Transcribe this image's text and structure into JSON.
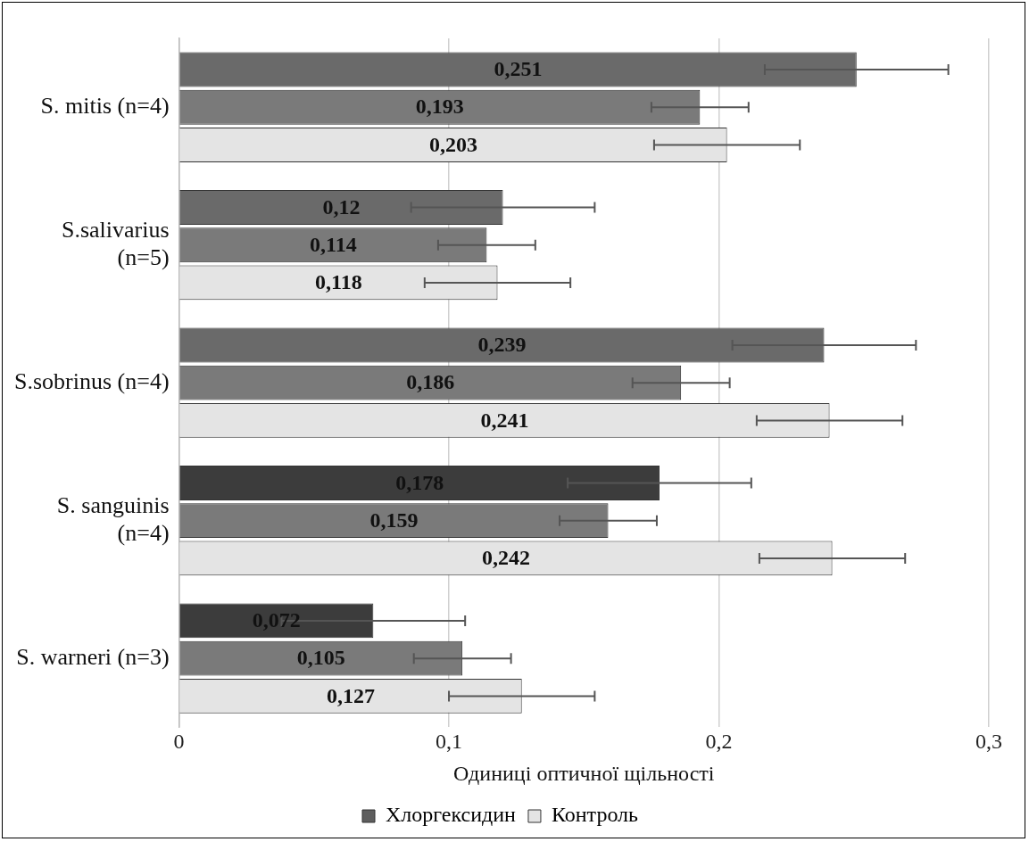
{
  "chart_data": {
    "type": "bar",
    "orientation": "horizontal",
    "xlabel": "Одиниці оптичної щільності",
    "categories": [
      "S. mitis (n=4)",
      "S.salivarius (n=5)",
      "S.sobrinus (n=4)",
      "S. sanguinis (n=4)",
      "S. warneri (n=3)"
    ],
    "series": [
      {
        "name": "Хлоргексидин",
        "color": "#5e5e5e",
        "colors": [
          "#6a6a6a",
          "#6a6a6a",
          "#6a6a6a",
          "#3c3c3c",
          "#3c3c3c"
        ],
        "values": [
          0.251,
          0.12,
          0.239,
          0.178,
          0.072
        ],
        "errors": [
          0.034,
          0.034,
          0.034,
          0.034,
          0.034
        ],
        "value_labels": [
          "0,251",
          "0,12",
          "0,239",
          "0,178",
          "0,072"
        ]
      },
      {
        "color": "#7a7a7a",
        "values": [
          0.193,
          0.114,
          0.186,
          0.159,
          0.105
        ],
        "errors": [
          0.018,
          0.018,
          0.018,
          0.018,
          0.018
        ],
        "value_labels": [
          "0,193",
          "0,114",
          "0,186",
          "0,159",
          "0,105"
        ]
      },
      {
        "name": "Контроль",
        "color": "#e4e4e4",
        "values": [
          0.203,
          0.118,
          0.241,
          0.242,
          0.127
        ],
        "errors": [
          0.027,
          0.027,
          0.027,
          0.027,
          0.027
        ],
        "value_labels": [
          "0,203",
          "0,118",
          "0,241",
          "0,242",
          "0,127"
        ]
      }
    ],
    "xlim": [
      0,
      0.3
    ],
    "xticks": [
      0,
      {
        "value": 0.1,
        "label": "0,1"
      },
      {
        "value": 0.2,
        "label": "0,2"
      },
      {
        "value": 0.3,
        "label": "0,3"
      }
    ],
    "grid": "x",
    "legend": "bottom"
  }
}
